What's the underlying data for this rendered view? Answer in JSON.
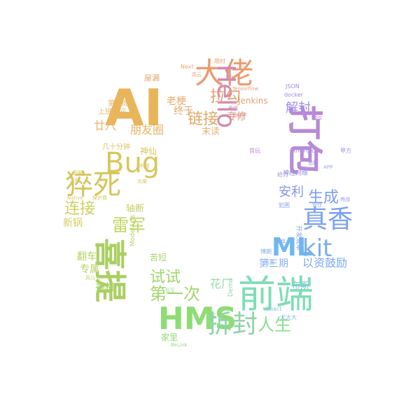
{
  "wordcloud": {
    "words": [
      {
        "text": "AI",
        "color": "#e8b55a"
      },
      {
        "text": "大佬",
        "color": "#ec9a6c"
      },
      {
        "text": "Hello",
        "color": "#d28ab0"
      },
      {
        "text": "打包",
        "color": "#b98ad8"
      },
      {
        "text": "Bug",
        "color": "#d8c85c"
      },
      {
        "text": "猝死",
        "color": "#d6c45a"
      },
      {
        "text": "喜提",
        "color": "#a9cf62"
      },
      {
        "text": "HMS",
        "color": "#8edd74"
      },
      {
        "text": "前端",
        "color": "#7fddb6"
      },
      {
        "text": "ML",
        "color": "#6fb8ef"
      },
      {
        "text": "kit",
        "color": "#7aaef2"
      },
      {
        "text": "真香",
        "color": "#7aa0f0"
      },
      {
        "text": "拆封",
        "color": "#8ed4a6"
      },
      {
        "text": "拉勾",
        "color": "#e89b74"
      },
      {
        "text": "链接",
        "color": "#e0a96a"
      },
      {
        "text": "雷军",
        "color": "#bfd55e"
      },
      {
        "text": "连接",
        "color": "#cdd15e"
      },
      {
        "text": "试试",
        "color": "#9bd86a"
      },
      {
        "text": "第一次",
        "color": "#a2d66a"
      },
      {
        "text": "人生",
        "color": "#8cdc92"
      },
      {
        "text": "生成",
        "color": "#7b9ef1"
      },
      {
        "text": "安利",
        "color": "#8b94ec"
      },
      {
        "text": "解封",
        "color": "#9d8ee8"
      },
      {
        "text": "第三期",
        "color": "#88b4ef"
      },
      {
        "text": "以资鼓励",
        "color": "#7ca8f0"
      },
      {
        "text": "朋友圈",
        "color": "#e7b26a"
      },
      {
        "text": "廿八",
        "color": "#ecb46a"
      },
      {
        "text": "老梗",
        "color": "#e6aa6a"
      },
      {
        "text": "终于",
        "color": "#e3a76a"
      },
      {
        "text": "花厂",
        "color": "#95dcaa"
      },
      {
        "text": "翻车",
        "color": "#b3d462"
      },
      {
        "text": "Jenkins",
        "color": "#e4a374"
      },
      {
        "text": "专修",
        "color": "#dc9c7c"
      },
      {
        "text": "末读",
        "color": "#e4b474"
      },
      {
        "text": "神仙",
        "color": "#d6c660"
      },
      {
        "text": "几十分钟",
        "color": "#dbc25f"
      },
      {
        "text": "轴断",
        "color": "#c8d062"
      },
      {
        "text": "新锅",
        "color": "#d4cc5e"
      },
      {
        "text": "第一周",
        "color": "#e4b46c"
      },
      {
        "text": "上班时间",
        "color": "#e7b46c"
      },
      {
        "text": "屋漏",
        "color": "#eaa46c"
      },
      {
        "text": "神机",
        "color": "#a7d466"
      },
      {
        "text": "专属",
        "color": "#b4d262"
      },
      {
        "text": "苦短",
        "color": "#aad46a"
      },
      {
        "text": "家里",
        "color": "#98d870"
      },
      {
        "text": "布斯",
        "color": "#86c6d6"
      },
      {
        "text": "Android",
        "color": "#a096e6"
      },
      {
        "text": "神经网络",
        "color": "#9196ea"
      },
      {
        "text": "开发成本",
        "color": "#8aa4ee"
      },
      {
        "text": "docker",
        "color": "#a28ae2"
      },
      {
        "text": "JSON",
        "color": "#a48ae0"
      },
      {
        "text": "Next",
        "color": "#eea474"
      },
      {
        "text": "Tensorflow",
        "color": "#e2a07e"
      },
      {
        "text": "Native",
        "color": "#dcc460"
      },
      {
        "text": "保护费",
        "color": "#d6c862"
      },
      {
        "text": "国服",
        "color": "#d8c864"
      },
      {
        "text": "滚轮",
        "color": "#d4ca60"
      },
      {
        "text": "ModelArts",
        "color": "#b4d466"
      },
      {
        "text": "Demo",
        "color": "#8cd6a8"
      },
      {
        "text": "React",
        "color": "#86c6d8"
      },
      {
        "text": "ES",
        "color": "#90d69a"
      },
      {
        "text": "BeLink",
        "color": "#94d88c"
      },
      {
        "text": "尤大大",
        "color": "#8ab8e0"
      },
      {
        "text": "犯困",
        "color": "#8aa0ee"
      },
      {
        "text": "冉战",
        "color": "#8a9cee"
      },
      {
        "text": "管住",
        "color": "#889eee"
      },
      {
        "text": "手痒",
        "color": "#86a6ee"
      },
      {
        "text": "博朗",
        "color": "#84aaee"
      },
      {
        "text": "页面",
        "color": "#84b0ee"
      },
      {
        "text": "给力",
        "color": "#9e92e6"
      },
      {
        "text": "甲方",
        "color": "#a68ce4"
      },
      {
        "text": "首玩",
        "color": "#c08ad6"
      },
      {
        "text": "爱唱",
        "color": "#d890a6"
      },
      {
        "text": "知浮宇",
        "color": "#dc94a0"
      },
      {
        "text": "高云",
        "color": "#eaa474"
      },
      {
        "text": "不涨",
        "color": "#d8c468"
      },
      {
        "text": "太废",
        "color": "#d4c66a"
      },
      {
        "text": "风口",
        "color": "#b8d266"
      },
      {
        "text": "低至",
        "color": "#98d88c"
      },
      {
        "text": "限时",
        "color": "#eaa07a"
      },
      {
        "text": "悉知",
        "color": "#9c92e6"
      },
      {
        "text": "2G",
        "color": "#a08ce4"
      },
      {
        "text": "APP",
        "color": "#9aa4ea"
      }
    ]
  }
}
